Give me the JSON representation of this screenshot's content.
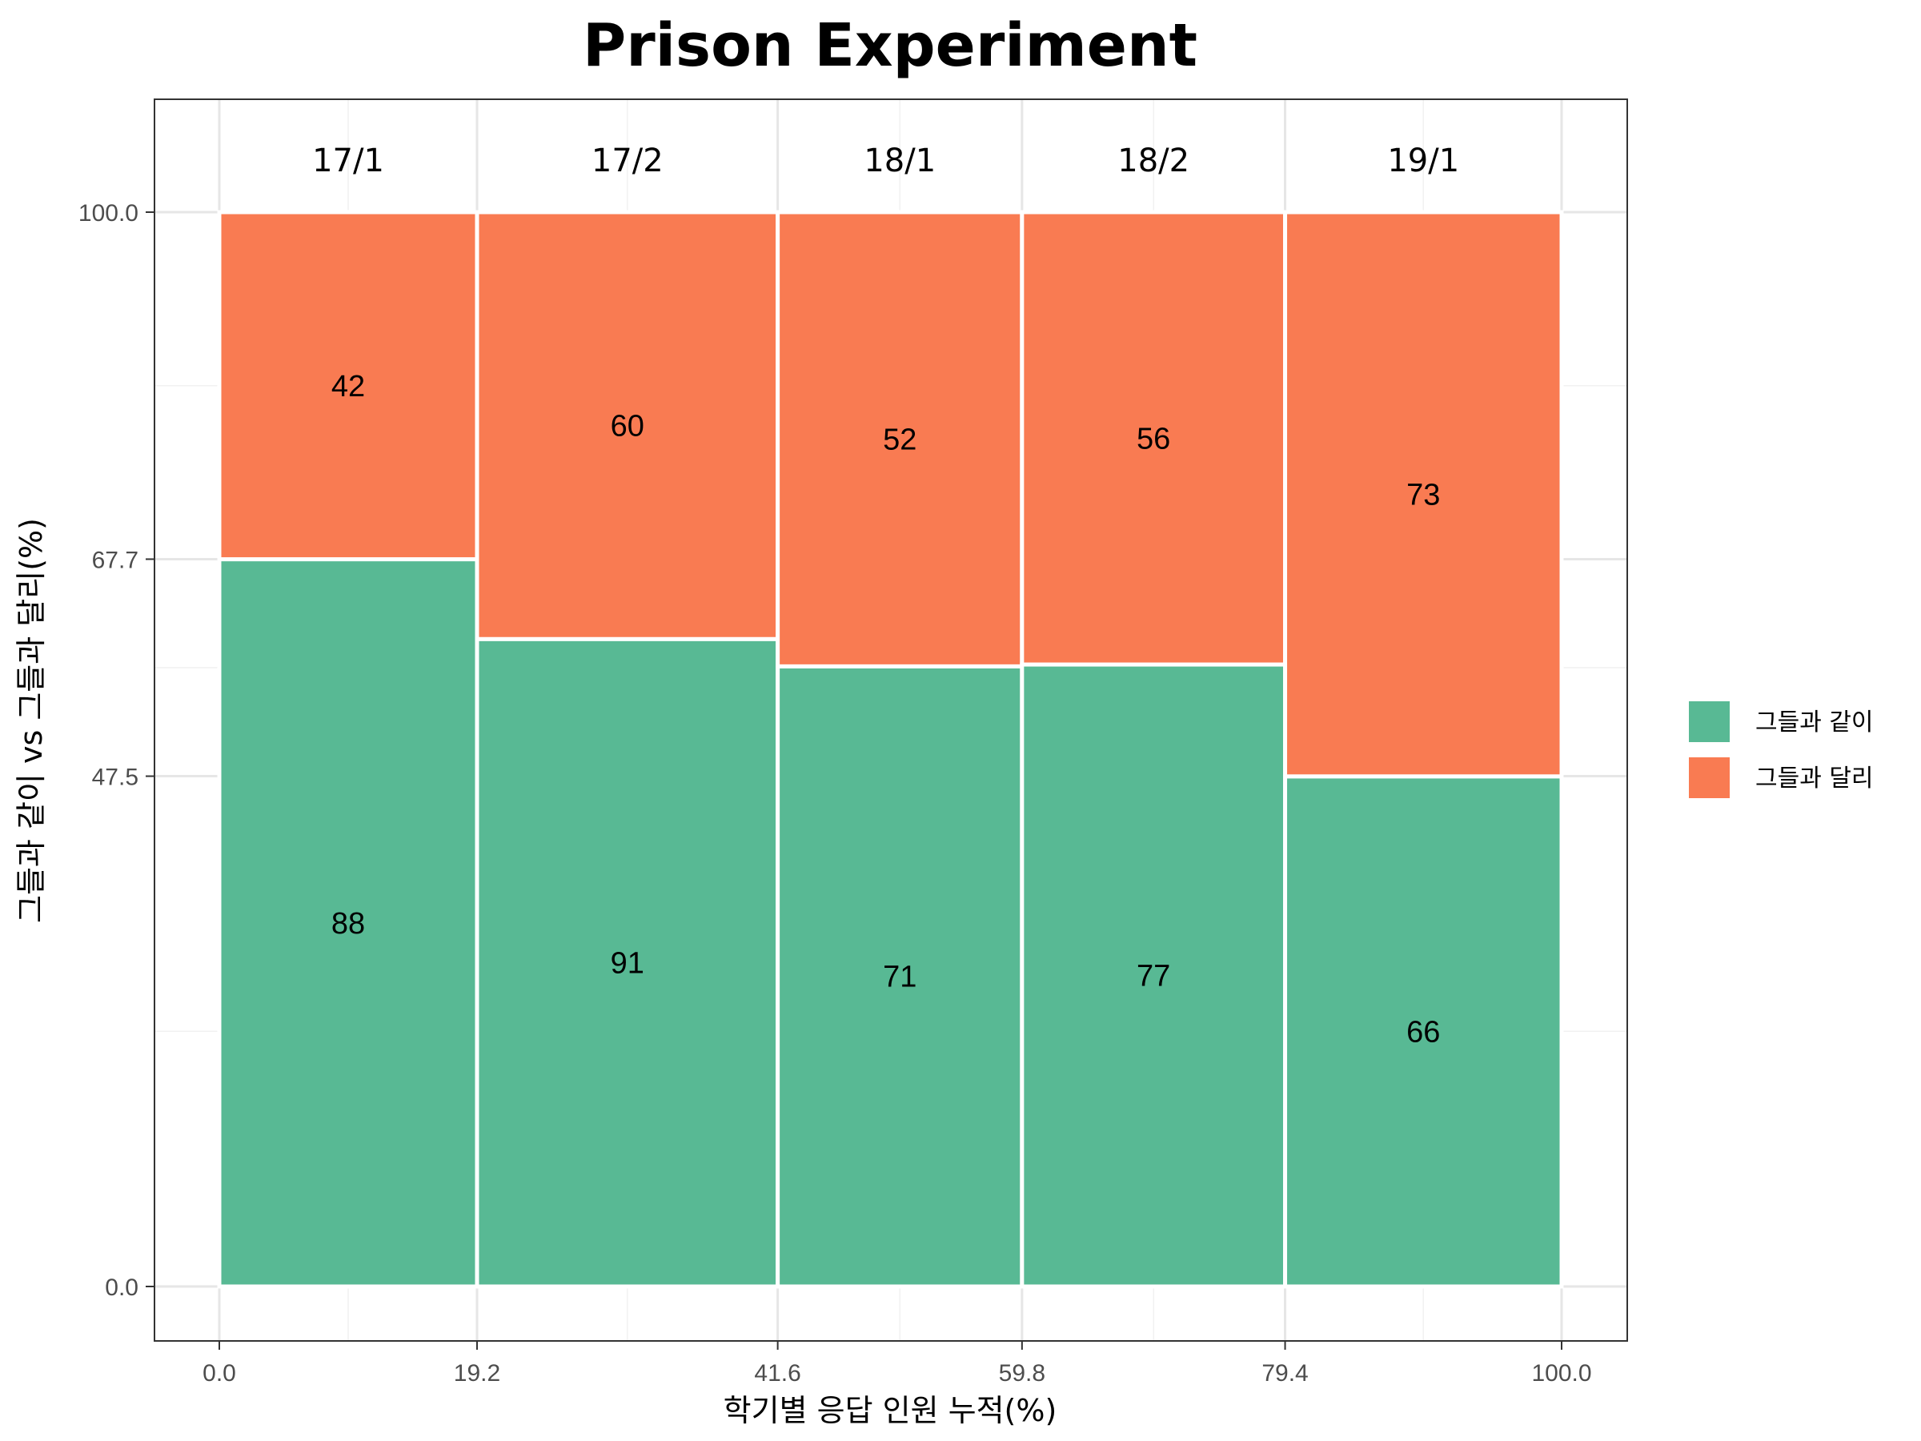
{
  "chart_data": {
    "type": "bar",
    "subtype": "mosaic",
    "title": "Prison Experiment",
    "xlabel": "학기별 응답 인원 누적(%)",
    "ylabel": "그들과 같이 vs 그들과 달리(%)",
    "categories": [
      "17/1",
      "17/2",
      "18/1",
      "18/2",
      "19/1"
    ],
    "x_breaks": [
      0.0,
      19.2,
      41.6,
      59.8,
      79.4,
      100.0
    ],
    "x_tick_labels": [
      "0.0",
      "19.2",
      "41.6",
      "59.8",
      "79.4",
      "100.0"
    ],
    "y_tick_values": [
      0.0,
      47.5,
      67.7,
      100.0
    ],
    "y_tick_labels": [
      "0.0",
      "47.5",
      "67.7",
      "100.0"
    ],
    "xlim": [
      0,
      100
    ],
    "ylim": [
      0,
      100
    ],
    "series": [
      {
        "name": "그들과 같이",
        "color": "#58b994",
        "values": [
          88,
          91,
          71,
          77,
          66
        ]
      },
      {
        "name": "그들과 달리",
        "color": "#f97b52",
        "values": [
          42,
          60,
          52,
          56,
          73
        ]
      }
    ],
    "legend_position": "right",
    "grid": true
  }
}
